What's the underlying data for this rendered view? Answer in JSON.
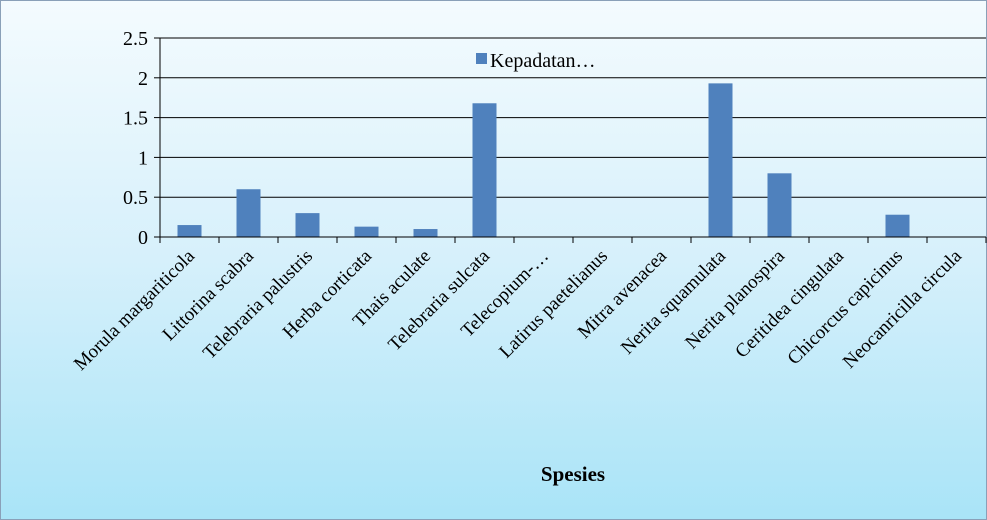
{
  "chart_data": {
    "type": "bar",
    "categories": [
      "Morula margariticola",
      "Littorina scabra",
      "Telebraria palustris",
      "Herba corticata",
      "Thais aculate",
      "Telebraria sulcata",
      "Telecopium-…",
      "Latirus paetelianus",
      "Mitra avenacea",
      "Nerita squamulata",
      "Nerita planospira",
      "Ceritidea cingulata",
      "Chicorcus capicinus",
      "Neocanricilla circula"
    ],
    "series": [
      {
        "name": "Kepadatan…",
        "color": "#4f81bd",
        "values": [
          0.15,
          0.6,
          0.3,
          0.13,
          0.1,
          1.68,
          0,
          0,
          0,
          1.93,
          0.8,
          0,
          0.28,
          0
        ]
      }
    ],
    "yticks": [
      "0",
      "0.5",
      "1",
      "1.5",
      "2",
      "2.5"
    ],
    "ylim": [
      0,
      2.5
    ],
    "xlabel": "Spesies",
    "ylabel": "",
    "title": "",
    "grid": true,
    "legend": "top-center"
  }
}
